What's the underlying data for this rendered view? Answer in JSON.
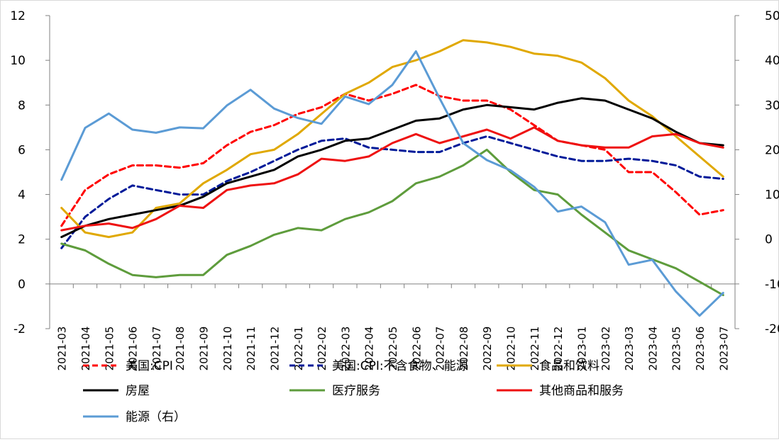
{
  "chart_data": {
    "type": "line",
    "categories": [
      "2021-03",
      "2021-04",
      "2021-05",
      "2021-06",
      "2021-07",
      "2021-08",
      "2021-09",
      "2021-10",
      "2021-11",
      "2021-12",
      "2022-01",
      "2022-02",
      "2022-03",
      "2022-04",
      "2022-05",
      "2022-06",
      "2022-07",
      "2022-08",
      "2022-09",
      "2022-10",
      "2022-11",
      "2022-12",
      "2023-01",
      "2023-02",
      "2023-03",
      "2023-04",
      "2023-05",
      "2023-06",
      "2023-07"
    ],
    "y_left": {
      "min": -2,
      "max": 12,
      "step": 2,
      "ticks": [
        "-2",
        "0",
        "2",
        "4",
        "6",
        "8",
        "10",
        "12"
      ]
    },
    "y_right": {
      "min": -20,
      "max": 50,
      "step": 10,
      "ticks": [
        "-20",
        "-10",
        "0",
        "10",
        "20",
        "30",
        "40",
        "50"
      ]
    },
    "grid": false,
    "legend_position": "bottom",
    "series": [
      {
        "name": "美国:CPI",
        "axis": "left",
        "color": "#FF0000",
        "dash": true,
        "values": [
          2.6,
          4.2,
          4.9,
          5.3,
          5.3,
          5.2,
          5.4,
          6.2,
          6.8,
          7.1,
          7.6,
          7.9,
          8.5,
          8.2,
          8.5,
          8.9,
          8.4,
          8.2,
          8.2,
          7.8,
          7.1,
          6.4,
          6.2,
          6.0,
          5.0,
          5.0,
          4.1,
          3.1,
          3.3
        ]
      },
      {
        "name": "美国:CPI:不含食物、能源",
        "axis": "left",
        "color": "#001A99",
        "dash": true,
        "values": [
          1.6,
          3.0,
          3.8,
          4.4,
          4.2,
          4.0,
          4.0,
          4.6,
          5.0,
          5.5,
          6.0,
          6.4,
          6.5,
          6.1,
          6.0,
          5.9,
          5.9,
          6.3,
          6.6,
          6.3,
          6.0,
          5.7,
          5.5,
          5.5,
          5.6,
          5.5,
          5.3,
          4.8,
          4.7
        ]
      },
      {
        "name": "食品和饮料",
        "axis": "left",
        "color": "#E0A800",
        "dash": false,
        "values": [
          3.4,
          2.3,
          2.1,
          2.3,
          3.4,
          3.6,
          4.5,
          5.1,
          5.8,
          6.0,
          6.7,
          7.6,
          8.5,
          9.0,
          9.7,
          10.0,
          10.4,
          10.9,
          10.8,
          10.6,
          10.3,
          10.2,
          9.9,
          9.2,
          8.2,
          7.5,
          6.6,
          5.7,
          4.8
        ]
      },
      {
        "name": "房屋",
        "axis": "left",
        "color": "#000000",
        "dash": false,
        "values": [
          2.1,
          2.6,
          2.9,
          3.1,
          3.3,
          3.5,
          3.9,
          4.5,
          4.8,
          5.1,
          5.7,
          6.0,
          6.4,
          6.5,
          6.9,
          7.3,
          7.4,
          7.8,
          8.0,
          7.9,
          7.8,
          8.1,
          8.3,
          8.2,
          7.8,
          7.4,
          6.8,
          6.3,
          6.2
        ]
      },
      {
        "name": "医疗服务",
        "axis": "left",
        "color": "#5E9C3C",
        "dash": false,
        "values": [
          1.8,
          1.5,
          0.9,
          0.4,
          0.3,
          0.4,
          0.4,
          1.3,
          1.7,
          2.2,
          2.5,
          2.4,
          2.9,
          3.2,
          3.7,
          4.5,
          4.8,
          5.3,
          6.0,
          5.0,
          4.2,
          4.0,
          3.1,
          2.3,
          1.5,
          1.1,
          0.7,
          0.1,
          -0.5
        ]
      },
      {
        "name": "其他商品和服务",
        "axis": "left",
        "color": "#EE1111",
        "dash": false,
        "values": [
          2.4,
          2.6,
          2.7,
          2.5,
          2.9,
          3.5,
          3.4,
          4.2,
          4.4,
          4.5,
          4.9,
          5.6,
          5.5,
          5.7,
          6.3,
          6.7,
          6.3,
          6.6,
          6.9,
          6.5,
          7.0,
          6.4,
          6.2,
          6.1,
          6.1,
          6.6,
          6.7,
          6.3,
          6.1
        ]
      },
      {
        "name": "能源（右）",
        "axis": "right",
        "color": "#5B9BD5",
        "dash": false,
        "values": [
          13.3,
          24.9,
          28.1,
          24.5,
          23.8,
          25.0,
          24.8,
          29.9,
          33.4,
          29.2,
          27.1,
          25.8,
          31.9,
          30.2,
          34.5,
          42.0,
          31.5,
          21.5,
          17.7,
          15.4,
          11.7,
          6.2,
          7.3,
          3.8,
          -5.7,
          -4.6,
          -11.7,
          -17.1,
          -12.0
        ]
      }
    ]
  }
}
